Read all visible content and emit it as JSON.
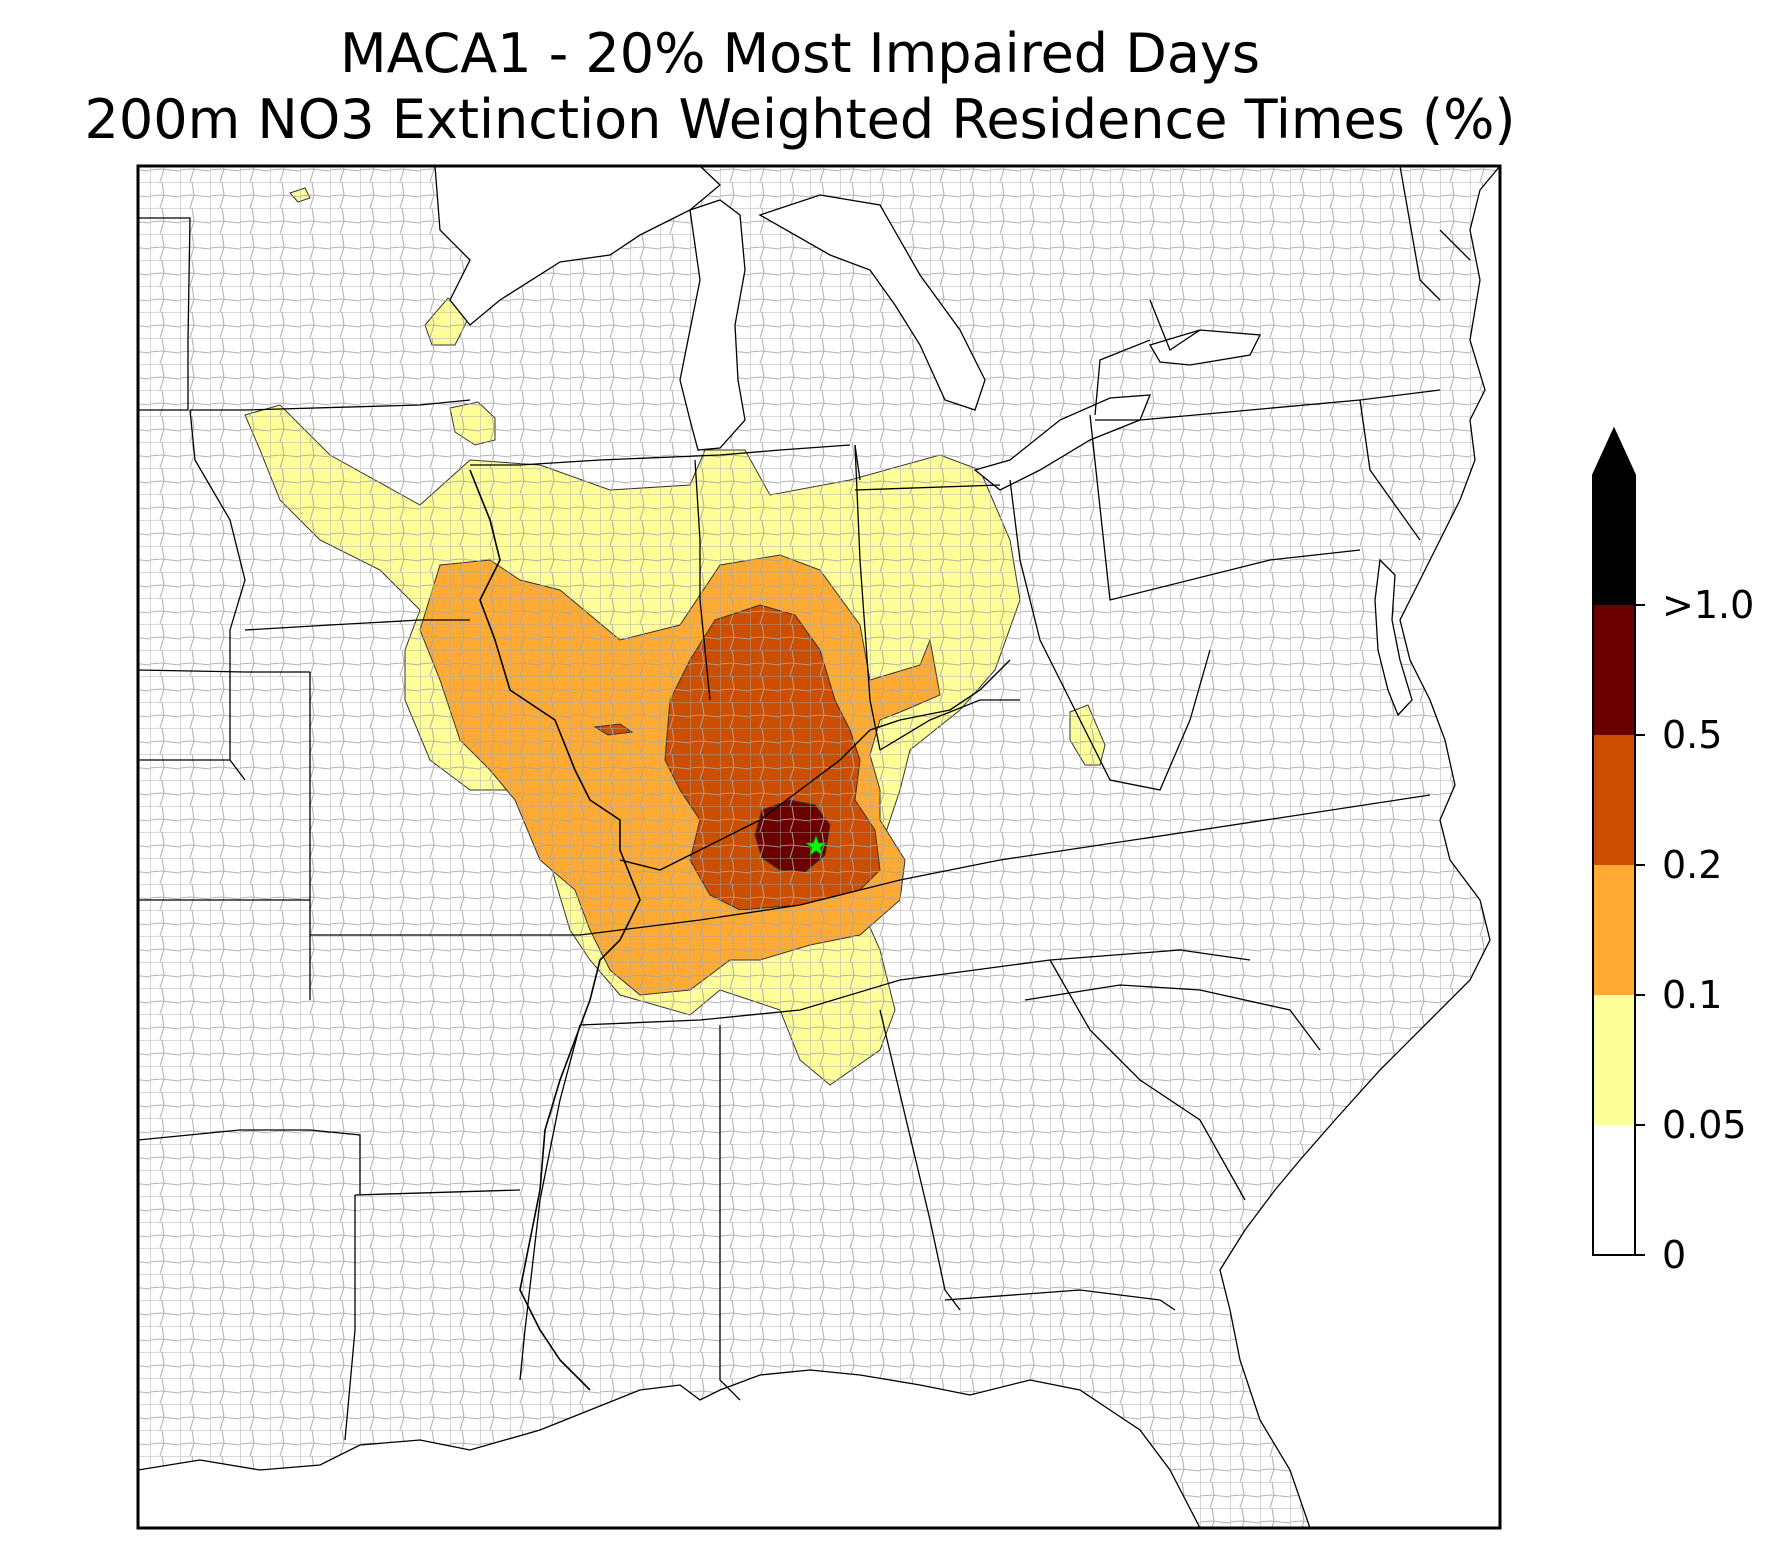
{
  "title_line1": "MACA1 - 20% Most Impaired Days",
  "title_line2": "200m NO3 Extinction Weighted Residence Times (%)",
  "colorbar": {
    "extend": "max",
    "levels": [
      {
        "label": "0",
        "color": "#ffffff"
      },
      {
        "label": "0.05",
        "color": "#ffff99"
      },
      {
        "label": "0.1",
        "color": "#ffaa33"
      },
      {
        "label": "0.2",
        "color": "#cc4e00"
      },
      {
        "label": "0.5",
        "color": "#6b0000"
      },
      {
        "label": ">1.0",
        "color": "#000000"
      }
    ]
  },
  "contours": [
    {
      "level": "0.05",
      "color": "#ffff99"
    },
    {
      "level": "0.1",
      "color": "#ffaa33"
    },
    {
      "level": "0.2",
      "color": "#cc4e00"
    },
    {
      "level": "0.5",
      "color": "#6b0000"
    }
  ],
  "receptor": {
    "site": "MACA1",
    "marker_color": "#00ff00",
    "symbol": "star"
  }
}
